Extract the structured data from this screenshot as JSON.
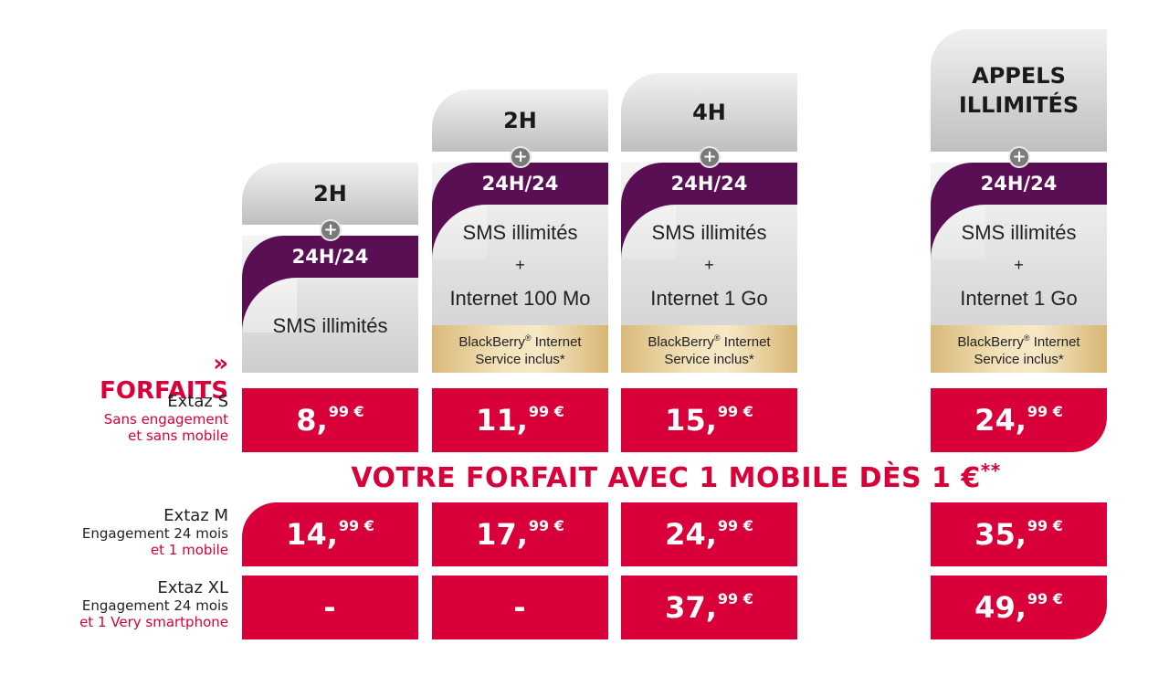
{
  "forfaits_label": "» FORFAITS",
  "banner": {
    "text": "VOTRE FORFAIT AVEC 1 MOBILE DÈS 1 €",
    "suffix": "**"
  },
  "plus_symbol": "+",
  "columns": [
    {
      "tab_lines": [
        "2H"
      ],
      "hours": "24H/24",
      "features": [
        "SMS illimités"
      ],
      "blackberry": false
    },
    {
      "tab_lines": [
        "2H"
      ],
      "hours": "24H/24",
      "features": [
        "SMS illimités",
        "+",
        "Internet 100 Mo"
      ],
      "blackberry": true
    },
    {
      "tab_lines": [
        "4H"
      ],
      "hours": "24H/24",
      "features": [
        "SMS illimités",
        "+",
        "Internet 1 Go"
      ],
      "blackberry": true
    },
    {
      "tab_lines": [
        "APPELS",
        "ILLIMITÉS"
      ],
      "hours": "24H/24",
      "features": [
        "SMS illimités",
        "+",
        "Internet 1 Go"
      ],
      "blackberry": true
    }
  ],
  "blackberry": {
    "line1_a": "BlackBerry",
    "line1_reg": "®",
    "line1_b": " Internet",
    "line2": "Service inclus*"
  },
  "rows": [
    {
      "name": "Extaz S",
      "sub1": "Sans engagement",
      "sub2": "et sans mobile",
      "prices": [
        {
          "int": "8,",
          "dec": "99 €"
        },
        {
          "int": "11,",
          "dec": "99 €"
        },
        {
          "int": "15,",
          "dec": "99 €"
        },
        {
          "int": "24,",
          "dec": "99 €"
        }
      ]
    },
    {
      "name": "Extaz M",
      "sub1": "Engagement 24 mois",
      "sub2": "et 1 mobile",
      "prices": [
        {
          "int": "14,",
          "dec": "99 €"
        },
        {
          "int": "17,",
          "dec": "99 €"
        },
        {
          "int": "24,",
          "dec": "99 €"
        },
        {
          "int": "35,",
          "dec": "99 €"
        }
      ]
    },
    {
      "name": "Extaz XL",
      "sub1": "Engagement 24 mois",
      "sub2": "et 1 Very smartphone",
      "prices": [
        {
          "int": "-",
          "dec": ""
        },
        {
          "int": "-",
          "dec": ""
        },
        {
          "int": "37,",
          "dec": "99 €"
        },
        {
          "int": "49,",
          "dec": "99 €"
        }
      ]
    }
  ],
  "colors": {
    "red": "#d9003a",
    "purple": "#5a0f55",
    "silver": "#d6d6d6",
    "gold": "#f4e3bb"
  }
}
